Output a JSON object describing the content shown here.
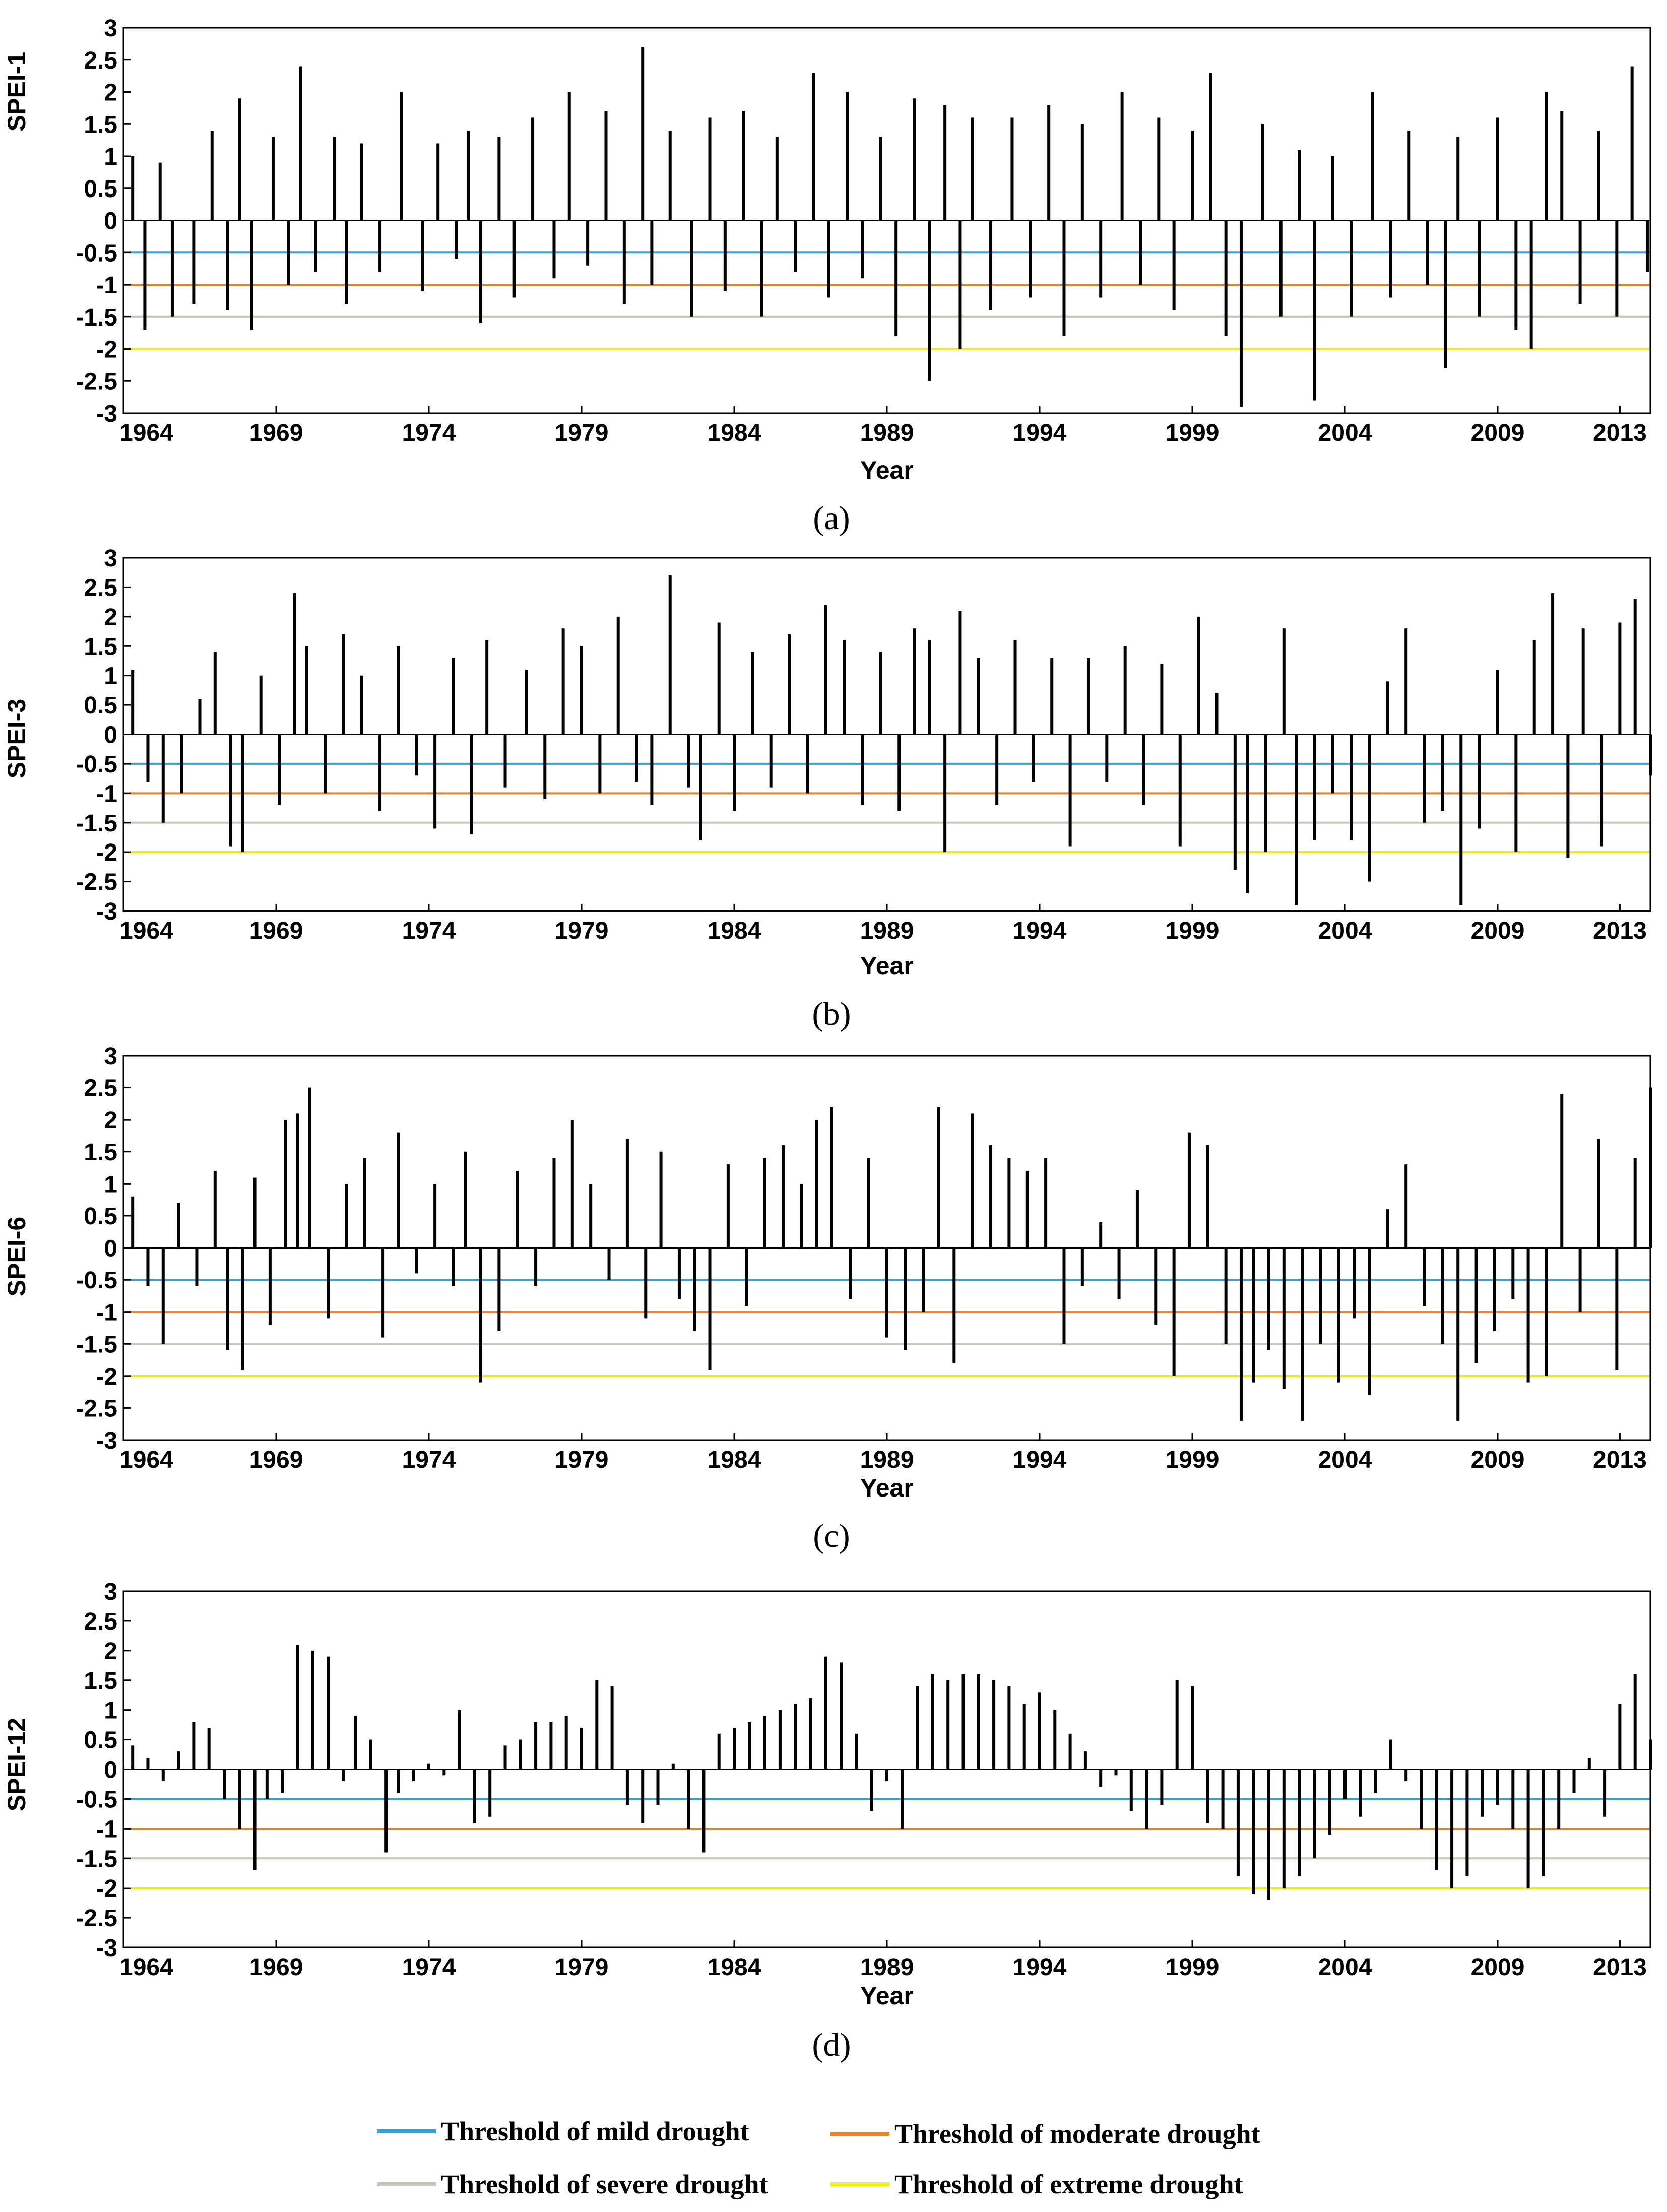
{
  "figure": {
    "x_title": "Year",
    "x_ticks": [
      "1964",
      "1969",
      "1974",
      "1979",
      "1984",
      "1989",
      "1994",
      "1999",
      "2004",
      "2009",
      "2013"
    ],
    "y_ticks": [
      "3",
      "2.5",
      "2",
      "1.5",
      "1",
      "0.5",
      "0",
      "-0.5",
      "-1",
      "-1.5",
      "-2",
      "-2.5",
      "-3"
    ]
  },
  "colors": {
    "mild": "#3a9fd6",
    "moderate": "#f07e26",
    "severe": "#c8c6b8",
    "extreme": "#f0ea1a",
    "bars": "#000000"
  },
  "legend": {
    "mild": "Threshold of mild drought",
    "moderate": "Threshold of moderate drought",
    "severe": "Threshold of severe drought",
    "extreme": "Threshold of extreme drought"
  },
  "chart_data": [
    {
      "type": "bar",
      "panel": "(a)",
      "ylabel": "SPEI-1",
      "xlabel": "Year",
      "xlim": [
        1964,
        2014
      ],
      "ylim": [
        -3,
        3
      ],
      "thresholds": [
        -0.5,
        -1,
        -1.5,
        -2
      ],
      "series": [
        {
          "name": "SPEI-1",
          "x": [
            1964.3,
            1964.7,
            1965.2,
            1965.6,
            1966.3,
            1966.9,
            1967.4,
            1967.8,
            1968.2,
            1968.9,
            1969.4,
            1969.8,
            1970.3,
            1970.9,
            1971.3,
            1971.8,
            1972.4,
            1973.1,
            1973.8,
            1974.3,
            1974.9,
            1975.3,
            1975.7,
            1976.3,
            1976.8,
            1977.4,
            1978.1,
            1978.6,
            1979.2,
            1979.8,
            1980.4,
            1981.0,
            1981.3,
            1981.9,
            1982.6,
            1983.2,
            1983.7,
            1984.3,
            1984.9,
            1985.4,
            1986.0,
            1986.6,
            1987.1,
            1987.7,
            1988.2,
            1988.8,
            1989.3,
            1989.9,
            1990.4,
            1990.9,
            1991.4,
            1991.8,
            1992.4,
            1993.1,
            1993.7,
            1994.3,
            1994.8,
            1995.4,
            1996.0,
            1996.7,
            1997.3,
            1997.9,
            1998.4,
            1999.0,
            1999.6,
            2000.1,
            2000.6,
            2001.3,
            2001.9,
            2002.5,
            2003.0,
            2003.6,
            2004.2,
            2004.9,
            2005.5,
            2006.1,
            2006.7,
            2007.3,
            2007.7,
            2008.4,
            2009.0,
            2009.6,
            2010.1,
            2010.6,
            2011.1,
            2011.7,
            2012.3,
            2012.9,
            2013.4,
            2013.9
          ],
          "values": [
            1.0,
            -1.7,
            0.9,
            -1.5,
            -1.3,
            1.4,
            -1.4,
            1.9,
            -1.7,
            1.3,
            -1.0,
            2.4,
            -0.8,
            1.3,
            -1.3,
            1.2,
            -0.8,
            2.0,
            -1.1,
            1.2,
            -0.6,
            1.4,
            -1.6,
            1.3,
            -1.2,
            1.6,
            -0.9,
            2.0,
            -0.7,
            1.7,
            -1.3,
            2.7,
            -1.0,
            1.4,
            -1.5,
            1.6,
            -1.1,
            1.7,
            -1.5,
            1.3,
            -0.8,
            2.3,
            -1.2,
            2.0,
            -0.9,
            1.3,
            -1.8,
            1.9,
            -2.5,
            1.8,
            -2.0,
            1.6,
            -1.4,
            1.6,
            -1.2,
            1.8,
            -1.8,
            1.5,
            -1.2,
            2.0,
            -1.0,
            1.6,
            -1.4,
            1.4,
            2.3,
            -1.8,
            -2.9,
            1.5,
            -1.5,
            1.1,
            -2.8,
            1.0,
            -1.5,
            2.0,
            -1.2,
            1.4,
            -1.0,
            -2.3,
            1.3,
            -1.5,
            1.6,
            -1.7,
            -2.0,
            2.0,
            1.7,
            -1.3,
            1.4,
            -1.5,
            2.4,
            -0.8
          ]
        }
      ]
    },
    {
      "type": "bar",
      "panel": "(b)",
      "ylabel": "SPEI-3",
      "xlabel": "Year",
      "xlim": [
        1964,
        2014
      ],
      "ylim": [
        -3,
        3
      ],
      "thresholds": [
        -0.5,
        -1,
        -1.5,
        -2
      ],
      "series": [
        {
          "name": "SPEI-3",
          "x": [
            1964.3,
            1964.8,
            1965.3,
            1965.9,
            1966.5,
            1967.0,
            1967.5,
            1967.9,
            1968.5,
            1969.1,
            1969.6,
            1970.0,
            1970.6,
            1971.2,
            1971.8,
            1972.4,
            1973.0,
            1973.6,
            1974.2,
            1974.8,
            1975.4,
            1975.9,
            1976.5,
            1977.2,
            1977.8,
            1978.4,
            1979.0,
            1979.6,
            1980.2,
            1980.8,
            1981.3,
            1981.9,
            1982.5,
            1982.9,
            1983.5,
            1984.0,
            1984.6,
            1985.2,
            1985.8,
            1986.4,
            1987.0,
            1987.6,
            1988.2,
            1988.8,
            1989.4,
            1989.9,
            1990.4,
            1990.9,
            1991.4,
            1992.0,
            1992.6,
            1993.2,
            1993.8,
            1994.4,
            1995.0,
            1995.6,
            1996.2,
            1996.8,
            1997.4,
            1998.0,
            1998.6,
            1999.2,
            1999.8,
            2000.4,
            2000.8,
            2001.4,
            2002.0,
            2002.4,
            2003.0,
            2003.6,
            2004.2,
            2004.8,
            2005.4,
            2006.0,
            2006.6,
            2007.2,
            2007.8,
            2008.4,
            2009.0,
            2009.6,
            2010.2,
            2010.8,
            2011.3,
            2011.8,
            2012.4,
            2013.0,
            2013.5,
            2014.0
          ],
          "values": [
            1.1,
            -0.8,
            -1.5,
            -1.0,
            0.6,
            1.4,
            -1.9,
            -2.0,
            1.0,
            -1.2,
            2.4,
            1.5,
            -1.0,
            1.7,
            1.0,
            -1.3,
            1.5,
            -0.7,
            -1.6,
            1.3,
            -1.7,
            1.6,
            -0.9,
            1.1,
            -1.1,
            1.8,
            1.5,
            -1.0,
            2.0,
            -0.8,
            -1.2,
            2.7,
            -0.9,
            -1.8,
            1.9,
            -1.3,
            1.4,
            -0.9,
            1.7,
            -1.0,
            2.2,
            1.6,
            -1.2,
            1.4,
            -1.3,
            1.8,
            1.6,
            -2.0,
            2.1,
            1.3,
            -1.2,
            1.6,
            -0.8,
            1.3,
            -1.9,
            1.3,
            -0.8,
            1.5,
            -1.2,
            1.2,
            -1.9,
            2.0,
            0.7,
            -2.3,
            -2.7,
            -2.0,
            1.8,
            -2.9,
            -1.8,
            -1.0,
            -1.8,
            -2.5,
            0.9,
            1.8,
            -1.5,
            -1.3,
            -2.9,
            -1.6,
            1.1,
            -2.0,
            1.6,
            2.4,
            -2.1,
            1.8,
            -1.9,
            1.9,
            2.3,
            -0.7
          ]
        }
      ]
    },
    {
      "type": "bar",
      "panel": "(c)",
      "ylabel": "SPEI-6",
      "xlabel": "Year",
      "xlim": [
        1964,
        2014
      ],
      "ylim": [
        -3,
        3
      ],
      "thresholds": [
        -0.5,
        -1,
        -1.5,
        -2
      ],
      "series": [
        {
          "name": "SPEI-6",
          "x": [
            1964.3,
            1964.8,
            1965.3,
            1965.8,
            1966.4,
            1967.0,
            1967.4,
            1967.9,
            1968.3,
            1968.8,
            1969.3,
            1969.7,
            1970.1,
            1970.7,
            1971.3,
            1971.9,
            1972.5,
            1973.0,
            1973.6,
            1974.2,
            1974.8,
            1975.2,
            1975.7,
            1976.3,
            1976.9,
            1977.5,
            1978.1,
            1978.7,
            1979.3,
            1979.9,
            1980.5,
            1981.1,
            1981.6,
            1982.2,
            1982.7,
            1983.2,
            1983.8,
            1984.4,
            1985.0,
            1985.6,
            1986.2,
            1986.7,
            1987.2,
            1987.8,
            1988.4,
            1989.0,
            1989.6,
            1990.2,
            1990.7,
            1991.2,
            1991.8,
            1992.4,
            1993.0,
            1993.6,
            1994.2,
            1994.8,
            1995.4,
            1996.0,
            1996.6,
            1997.2,
            1997.8,
            1998.4,
            1998.9,
            1999.5,
            2000.1,
            2000.6,
            2001.0,
            2001.5,
            2002.0,
            2002.6,
            2003.2,
            2003.8,
            2004.3,
            2004.8,
            2005.4,
            2006.0,
            2006.6,
            2007.2,
            2007.7,
            2008.3,
            2008.9,
            2009.5,
            2010.0,
            2010.6,
            2011.1,
            2011.7,
            2012.3,
            2012.9,
            2013.5,
            2014.0
          ],
          "values": [
            0.8,
            -0.6,
            -1.5,
            0.7,
            -0.6,
            1.2,
            -1.6,
            -1.9,
            1.1,
            -1.2,
            2.0,
            2.1,
            2.5,
            -1.1,
            1.0,
            1.4,
            -1.4,
            1.8,
            -0.4,
            1.0,
            -0.6,
            1.5,
            -2.1,
            -1.3,
            1.2,
            -0.6,
            1.4,
            2.0,
            1.0,
            -0.5,
            1.7,
            -1.1,
            1.5,
            -0.8,
            -1.3,
            -1.9,
            1.3,
            -0.9,
            1.4,
            1.6,
            1.0,
            2.0,
            2.2,
            -0.8,
            1.4,
            -1.4,
            -1.6,
            -1.0,
            2.2,
            -1.8,
            2.1,
            1.6,
            1.4,
            1.2,
            1.4,
            -1.5,
            -0.6,
            0.4,
            -0.8,
            0.9,
            -1.2,
            -2.0,
            1.8,
            1.6,
            -1.5,
            -2.7,
            -2.1,
            -1.6,
            -2.2,
            -2.7,
            -1.5,
            -2.1,
            -1.1,
            -2.3,
            0.6,
            1.3,
            -0.9,
            -1.5,
            -2.7,
            -1.8,
            -1.3,
            -0.8,
            -2.1,
            -2.0,
            2.4,
            -1.0,
            1.7,
            -1.9,
            1.4,
            2.5
          ]
        }
      ]
    },
    {
      "type": "bar",
      "panel": "(d)",
      "ylabel": "SPEI-12",
      "xlabel": "Year",
      "xlim": [
        1964,
        2014
      ],
      "ylim": [
        -3,
        3
      ],
      "thresholds": [
        -0.5,
        -1,
        -1.5,
        -2
      ],
      "series": [
        {
          "name": "SPEI-12",
          "x": [
            1964.3,
            1964.8,
            1965.3,
            1965.8,
            1966.3,
            1966.8,
            1967.3,
            1967.8,
            1968.3,
            1968.7,
            1969.2,
            1969.7,
            1970.2,
            1970.7,
            1971.2,
            1971.6,
            1972.1,
            1972.6,
            1973.0,
            1973.5,
            1974.0,
            1974.5,
            1975.0,
            1975.5,
            1976.0,
            1976.5,
            1977.0,
            1977.5,
            1978.0,
            1978.5,
            1979.0,
            1979.5,
            1980.0,
            1980.5,
            1981.0,
            1981.5,
            1982.0,
            1982.5,
            1983.0,
            1983.5,
            1984.0,
            1984.5,
            1985.0,
            1985.5,
            1986.0,
            1986.5,
            1987.0,
            1987.5,
            1988.0,
            1988.5,
            1989.0,
            1989.5,
            1990.0,
            1990.5,
            1991.0,
            1991.5,
            1992.0,
            1992.5,
            1993.0,
            1993.5,
            1994.0,
            1994.5,
            1995.0,
            1995.5,
            1996.0,
            1996.5,
            1997.0,
            1997.5,
            1998.0,
            1998.5,
            1999.0,
            1999.5,
            2000.0,
            2000.5,
            2001.0,
            2001.5,
            2002.0,
            2002.5,
            2003.0,
            2003.5,
            2004.0,
            2004.5,
            2005.0,
            2005.5,
            2006.0,
            2006.5,
            2007.0,
            2007.5,
            2008.0,
            2008.5,
            2009.0,
            2009.5,
            2010.0,
            2010.5,
            2011.0,
            2011.5,
            2012.0,
            2012.5,
            2013.0,
            2013.5,
            2014.0
          ],
          "values": [
            0.4,
            0.2,
            -0.2,
            0.3,
            0.8,
            0.7,
            -0.5,
            -1.0,
            -1.7,
            -0.5,
            -0.4,
            2.1,
            2.0,
            1.9,
            -0.2,
            0.9,
            0.5,
            -1.4,
            -0.4,
            -0.2,
            0.1,
            -0.1,
            1.0,
            -0.9,
            -0.8,
            0.4,
            0.5,
            0.8,
            0.8,
            0.9,
            0.7,
            1.5,
            1.4,
            -0.6,
            -0.9,
            -0.6,
            0.1,
            -1.0,
            -1.4,
            0.6,
            0.7,
            0.8,
            0.9,
            1.0,
            1.1,
            1.2,
            1.9,
            1.8,
            0.6,
            -0.7,
            -0.2,
            -1.0,
            1.4,
            1.6,
            1.5,
            1.6,
            1.6,
            1.5,
            1.4,
            1.1,
            1.3,
            1.0,
            0.6,
            0.3,
            -0.3,
            -0.1,
            -0.7,
            -1.0,
            -0.6,
            1.5,
            1.4,
            -0.9,
            -1.0,
            -1.8,
            -2.1,
            -2.2,
            -2.0,
            -1.8,
            -1.5,
            -1.1,
            -0.5,
            -0.8,
            -0.4,
            0.5,
            -0.2,
            -1.0,
            -1.7,
            -2.0,
            -1.8,
            -0.8,
            -0.6,
            -1.0,
            -2.0,
            -1.8,
            -1.0,
            -0.4,
            0.2,
            -0.8,
            1.1,
            1.6,
            0.5
          ]
        }
      ]
    }
  ]
}
